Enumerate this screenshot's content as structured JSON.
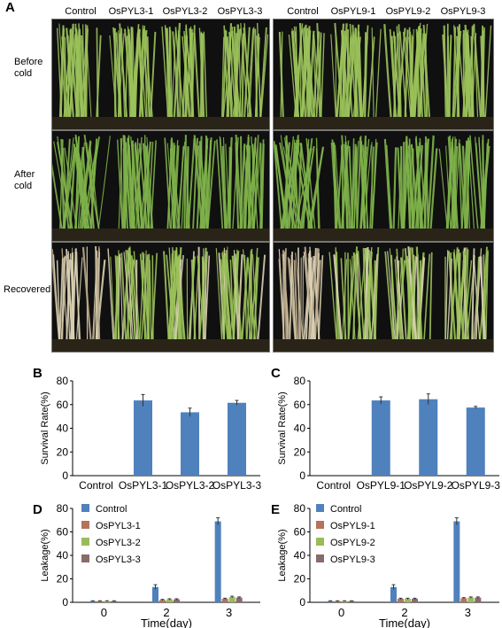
{
  "panel_a": {
    "letter": "A",
    "left_columns": [
      "Control",
      "OsPYL3-1",
      "OsPYL3-2",
      "OsPYL3-3"
    ],
    "right_columns": [
      "Control",
      "OsPYL9-1",
      "OsPYL9-2",
      "OsPYL9-3"
    ],
    "rows": [
      {
        "label": "Before cold",
        "state": "healthy"
      },
      {
        "label": "After cold",
        "state": "cold"
      },
      {
        "label": "Recovered",
        "state": "recovered"
      }
    ],
    "colors": {
      "healthy": "#9bc25a",
      "cold": "#7fb34a",
      "dead": "#d9d0b4",
      "background": "#101010"
    }
  },
  "chart_data": [
    {
      "panel": "B",
      "type": "bar",
      "ylabel": "Survival Rate(%)",
      "ylim": [
        0,
        80
      ],
      "yticks": [
        0,
        20,
        40,
        60,
        80
      ],
      "categories": [
        "Control",
        "OsPYL3-1",
        "OsPYL3-2",
        "OsPYL3-3"
      ],
      "values": [
        0,
        63.5,
        53.5,
        61.5
      ],
      "errors": [
        0,
        5,
        3.5,
        2
      ],
      "color": "#4f81bd"
    },
    {
      "panel": "C",
      "type": "bar",
      "ylabel": "Survival Rate(%)",
      "ylim": [
        0,
        80
      ],
      "yticks": [
        0,
        20,
        40,
        60,
        80
      ],
      "categories": [
        "Control",
        "OsPYL9-1",
        "OsPYL9-2",
        "OsPYL9-3"
      ],
      "values": [
        0,
        63.5,
        64.5,
        57.5
      ],
      "errors": [
        0,
        3,
        4.5,
        1
      ],
      "color": "#4f81bd"
    },
    {
      "panel": "D",
      "type": "bar",
      "xlabel": "Time(day)",
      "ylabel": "Leakage(%)",
      "ylim": [
        0,
        80
      ],
      "yticks": [
        0,
        20,
        40,
        60,
        80
      ],
      "categories": [
        "0",
        "2",
        "3"
      ],
      "series": [
        {
          "name": "Control",
          "values": [
            1,
            13,
            69
          ],
          "errors": [
            0.3,
            2,
            3
          ],
          "color": "#4f81bd"
        },
        {
          "name": "OsPYL3-1",
          "values": [
            1,
            2,
            3
          ],
          "errors": [
            0.3,
            0.5,
            0.5
          ],
          "color": "#b5735a"
        },
        {
          "name": "OsPYL3-2",
          "values": [
            1,
            2.5,
            4.5
          ],
          "errors": [
            0.3,
            0.5,
            0.7
          ],
          "color": "#9bbb59"
        },
        {
          "name": "OsPYL3-3",
          "values": [
            1,
            2.5,
            4
          ],
          "errors": [
            0.3,
            0.5,
            0.6
          ],
          "color": "#8b6a6a"
        }
      ],
      "legend_position": "top-left"
    },
    {
      "panel": "E",
      "type": "bar",
      "xlabel": "Time(day)",
      "ylabel": "Leakage(%)",
      "ylim": [
        0,
        80
      ],
      "yticks": [
        0,
        20,
        40,
        60,
        80
      ],
      "categories": [
        "0",
        "2",
        "3"
      ],
      "series": [
        {
          "name": "Control",
          "values": [
            1,
            13,
            69
          ],
          "errors": [
            0.3,
            2,
            3
          ],
          "color": "#4f81bd"
        },
        {
          "name": "OsPYL9-1",
          "values": [
            1,
            3,
            3.5
          ],
          "errors": [
            0.3,
            0.5,
            0.5
          ],
          "color": "#b5735a"
        },
        {
          "name": "OsPYL9-2",
          "values": [
            1,
            3,
            4
          ],
          "errors": [
            0.3,
            0.5,
            0.6
          ],
          "color": "#9bbb59"
        },
        {
          "name": "OsPYL9-3",
          "values": [
            1,
            3,
            4
          ],
          "errors": [
            0.3,
            0.5,
            0.6
          ],
          "color": "#8b6a6a"
        }
      ],
      "legend_position": "top-left"
    }
  ]
}
